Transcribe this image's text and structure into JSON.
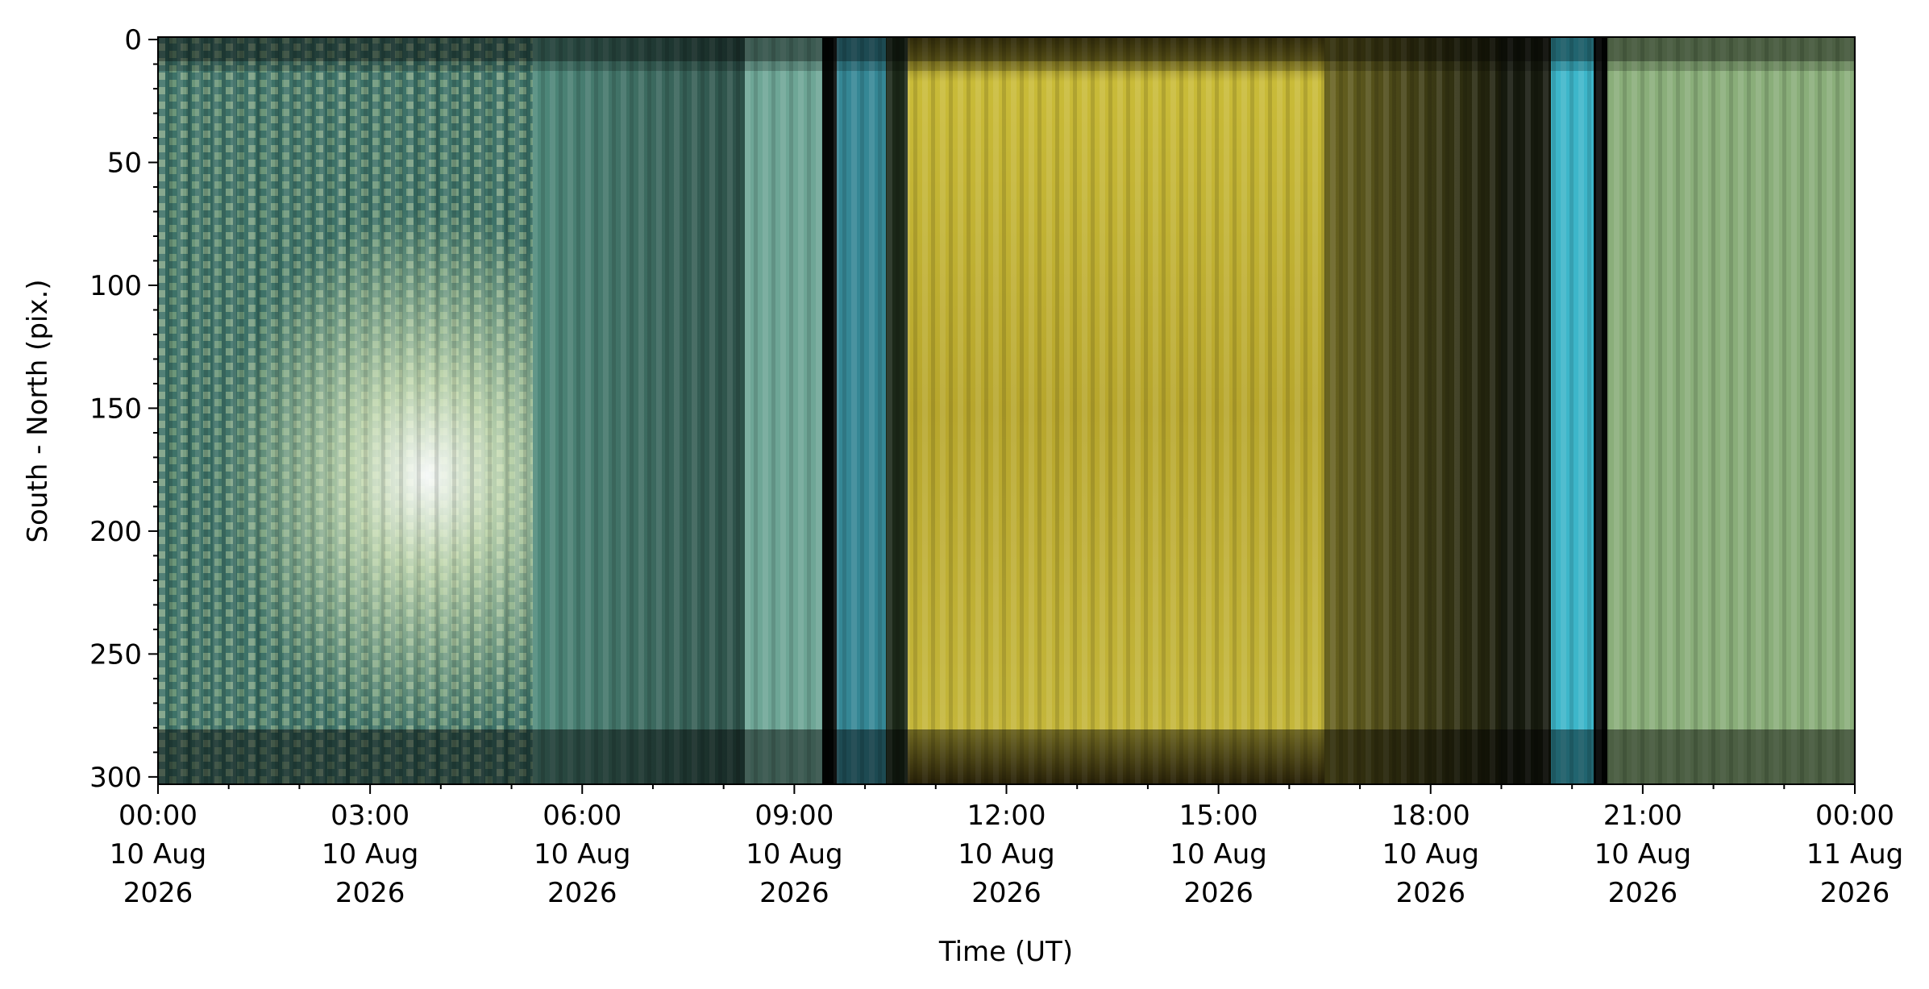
{
  "chart_data": {
    "type": "image",
    "xlabel": "Time (UT)",
    "ylabel": "South - North (pix.)",
    "xlim": [
      "2026-08-10T00:00",
      "2026-08-11T00:00"
    ],
    "xticks": [
      {
        "value": "2026-08-10T00:00",
        "label": "00:00\n10 Aug\n2026"
      },
      {
        "value": "2026-08-10T03:00",
        "label": "03:00\n10 Aug\n2026"
      },
      {
        "value": "2026-08-10T06:00",
        "label": "06:00\n10 Aug\n2026"
      },
      {
        "value": "2026-08-10T09:00",
        "label": "09:00\n10 Aug\n2026"
      },
      {
        "value": "2026-08-10T12:00",
        "label": "12:00\n10 Aug\n2026"
      },
      {
        "value": "2026-08-10T15:00",
        "label": "15:00\n10 Aug\n2026"
      },
      {
        "value": "2026-08-10T18:00",
        "label": "18:00\n10 Aug\n2026"
      },
      {
        "value": "2026-08-10T21:00",
        "label": "21:00\n10 Aug\n2026"
      },
      {
        "value": "2026-08-11T00:00",
        "label": "00:00\n11 Aug\n2026"
      }
    ],
    "ylim": [
      -1,
      303
    ],
    "yinverted": true,
    "yticks": [
      0,
      50,
      100,
      150,
      200,
      250,
      300
    ]
  }
}
